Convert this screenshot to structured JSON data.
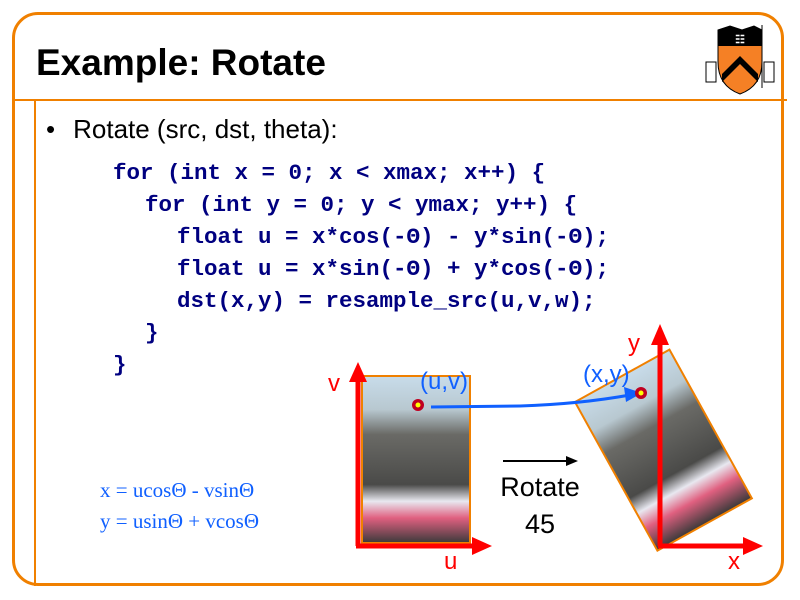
{
  "title": "Example: Rotate",
  "bullet": "Rotate (src, dst, theta):",
  "code": [
    "for (int x = 0; x < xmax; x++) {",
    "for (int y = 0; y < ymax; y++) {",
    "float u = x*cos(-Θ) - y*sin(-Θ);",
    "float u = x*sin(-Θ) + y*cos(-Θ);",
    "dst(x,y) = resample_src(u,v,w);",
    "}",
    "}"
  ],
  "formulas": [
    "x = ucosΘ - vsinΘ",
    "y = usinΘ + vcosΘ"
  ],
  "diagram": {
    "rotate_label": "Rotate",
    "angle": "45",
    "src_point": "(u,v)",
    "dst_point": "(x,y)",
    "axes": {
      "u": "u",
      "v": "v",
      "x": "x",
      "y": "y"
    }
  },
  "logo": "Princeton shield",
  "colors": {
    "border": "#f08000",
    "code": "#000080",
    "formula": "#1060ff",
    "axes": "#ff0000"
  }
}
